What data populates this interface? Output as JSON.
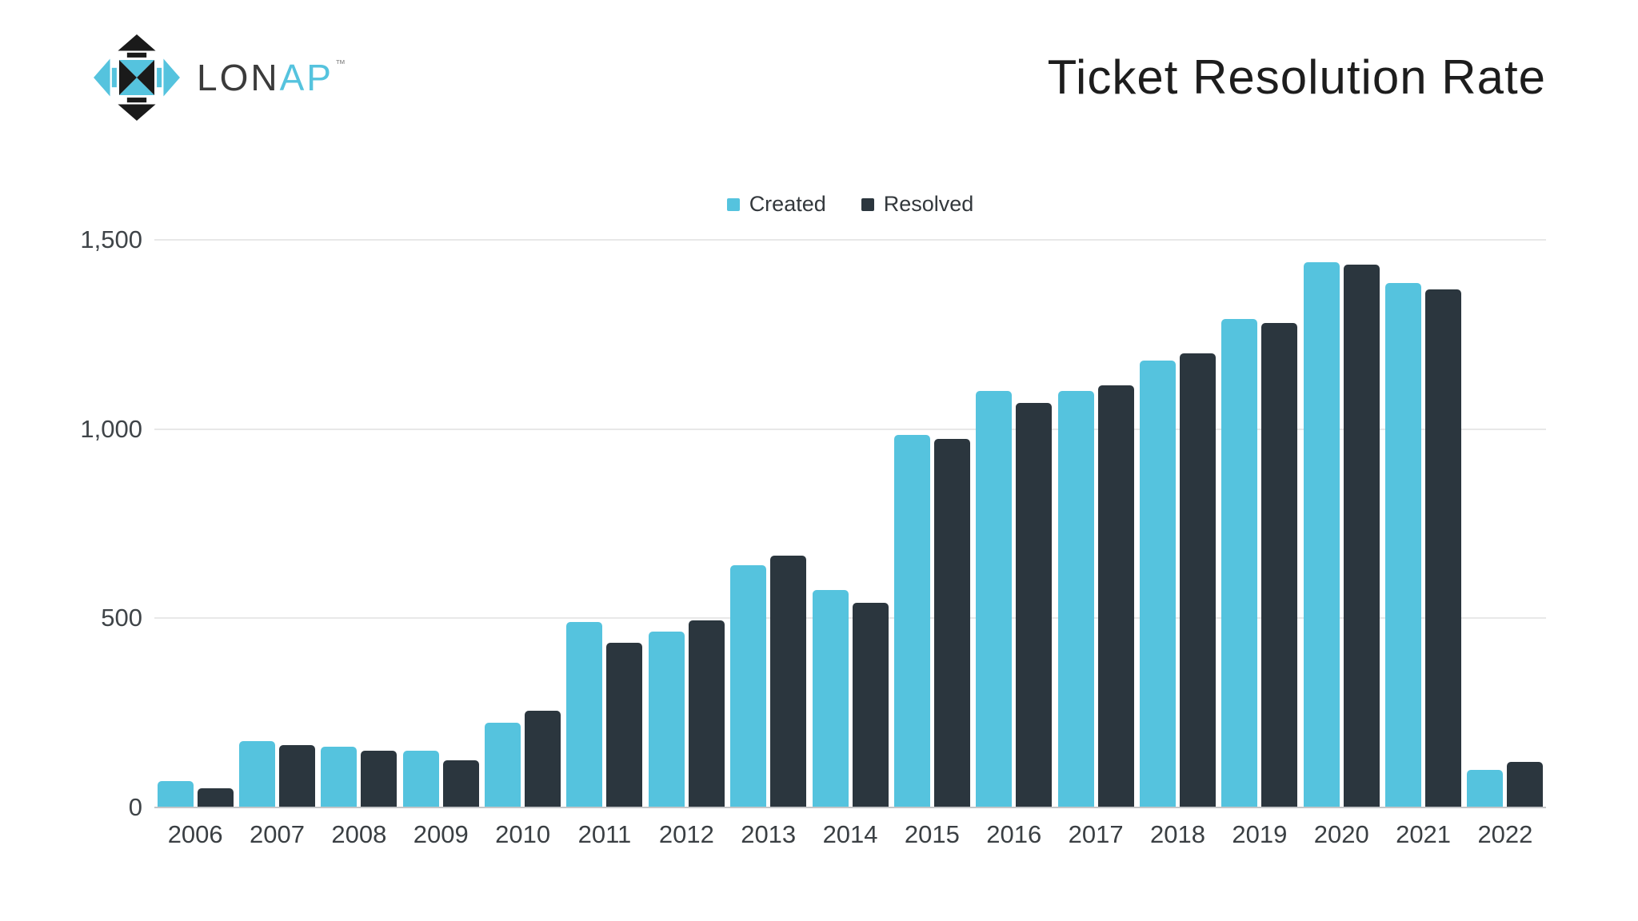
{
  "brand": {
    "logo_primary": "LON",
    "logo_secondary": "AP",
    "trademark": "™"
  },
  "header": {
    "title": "Ticket Resolution Rate"
  },
  "legend": {
    "items": [
      {
        "label": "Created",
        "color": "#55c3de"
      },
      {
        "label": "Resolved",
        "color": "#2b363e"
      }
    ]
  },
  "chart_data": {
    "type": "bar",
    "title": "Ticket Resolution Rate",
    "categories": [
      "2006",
      "2007",
      "2008",
      "2009",
      "2010",
      "2011",
      "2012",
      "2013",
      "2014",
      "2015",
      "2016",
      "2017",
      "2018",
      "2019",
      "2020",
      "2021",
      "2022"
    ],
    "series": [
      {
        "name": "Created",
        "color": "#55c3de",
        "values": [
          70,
          175,
          160,
          150,
          225,
          490,
          465,
          640,
          575,
          985,
          1100,
          1100,
          1180,
          1290,
          1440,
          1385,
          100
        ]
      },
      {
        "name": "Resolved",
        "color": "#2b363e",
        "values": [
          50,
          165,
          150,
          125,
          255,
          435,
          495,
          665,
          540,
          975,
          1070,
          1115,
          1200,
          1280,
          1435,
          1370,
          120
        ]
      }
    ],
    "xlabel": "",
    "ylabel": "",
    "ylim": [
      0,
      1500
    ],
    "yticks": [
      {
        "value": 0,
        "label": "0"
      },
      {
        "value": 500,
        "label": "500"
      },
      {
        "value": 1000,
        "label": "1,000"
      },
      {
        "value": 1500,
        "label": "1,500"
      }
    ],
    "grid": true,
    "legend_position": "top-center"
  }
}
